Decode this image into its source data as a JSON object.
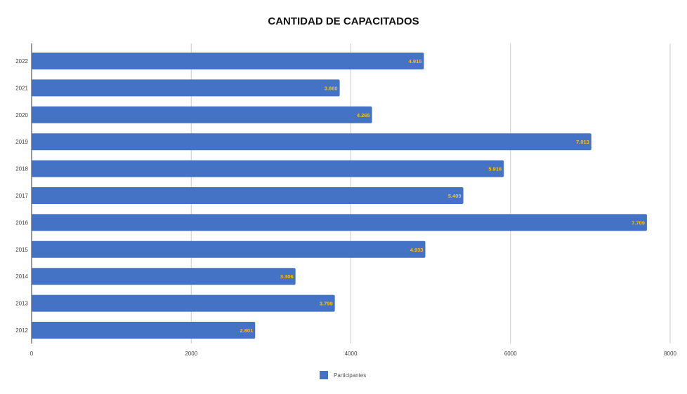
{
  "chart_data": {
    "type": "bar",
    "orientation": "horizontal",
    "title": "CANTIDAD DE CAPACITADOS",
    "categories": [
      "2022",
      "2021",
      "2020",
      "2019",
      "2018",
      "2017",
      "2016",
      "2015",
      "2014",
      "2013",
      "2012"
    ],
    "series": [
      {
        "name": "Participantes",
        "values": [
          4915,
          3860,
          4265,
          7013,
          5916,
          5409,
          7709,
          4933,
          3306,
          3799,
          2801
        ],
        "labels": [
          "4.915",
          "3.860",
          "4.265",
          "7.013",
          "5.916",
          "5.409",
          "7.709",
          "4.933",
          "3.306",
          "3.799",
          "2.801"
        ]
      }
    ],
    "xlim": [
      0,
      8000
    ],
    "xticks": [
      0,
      2000,
      4000,
      6000,
      8000
    ],
    "xtick_labels": [
      "0",
      "2000",
      "4000",
      "6000",
      "8000"
    ],
    "grid": true,
    "legend_position": "bottom",
    "colors": {
      "bar": "#4472c4",
      "data_label": "#ffc000",
      "grid": "#cccccc",
      "axis": "#333333"
    }
  }
}
